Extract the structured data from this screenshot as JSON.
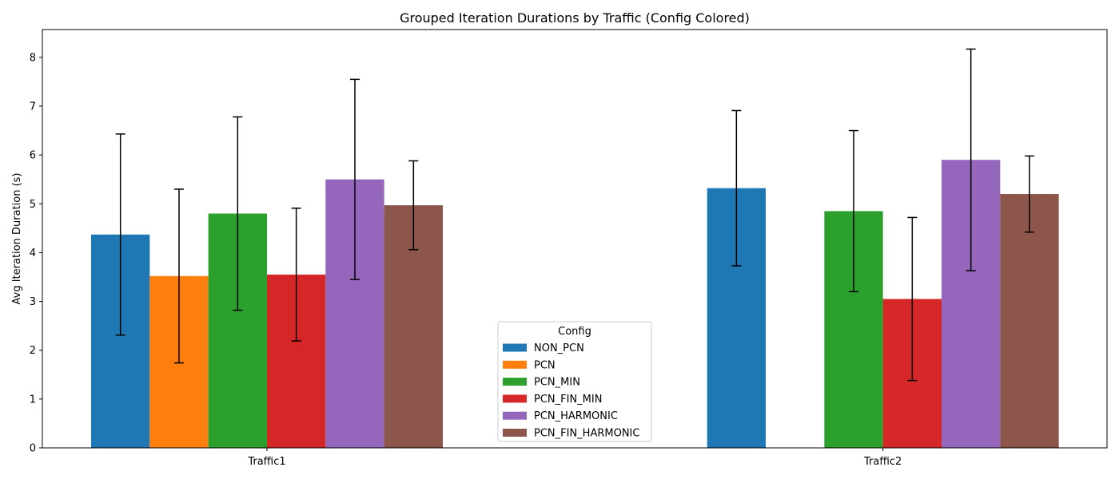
{
  "chart_data": {
    "type": "bar",
    "title": "Grouped Iteration Durations by Traffic (Config Colored)",
    "xlabel": "",
    "ylabel": "Avg Iteration Duration (s)",
    "categories": [
      "Traffic1",
      "Traffic2"
    ],
    "ylim": [
      0,
      8.57
    ],
    "yticks": [
      0,
      1,
      2,
      3,
      4,
      5,
      6,
      7,
      8
    ],
    "grid": false,
    "error_bars": true,
    "legend": {
      "title": "Config",
      "placement": "lower-center"
    },
    "series": [
      {
        "name": "NON_PCN",
        "color": "#1f77b4",
        "values": [
          4.37,
          5.32
        ],
        "errors": [
          2.06,
          1.59
        ]
      },
      {
        "name": "PCN",
        "color": "#ff7f0e",
        "values": [
          3.52,
          null
        ],
        "errors": [
          1.78,
          null
        ]
      },
      {
        "name": "PCN_MIN",
        "color": "#2ca02c",
        "values": [
          4.8,
          4.85
        ],
        "errors": [
          1.98,
          1.65
        ]
      },
      {
        "name": "PCN_FIN_MIN",
        "color": "#d62728",
        "values": [
          3.55,
          3.05
        ],
        "errors": [
          1.36,
          1.67
        ]
      },
      {
        "name": "PCN_HARMONIC",
        "color": "#9467bd",
        "values": [
          5.5,
          5.9
        ],
        "errors": [
          2.05,
          2.27
        ]
      },
      {
        "name": "PCN_FIN_HARMONIC",
        "color": "#8c564b",
        "values": [
          4.97,
          5.2
        ],
        "errors": [
          0.91,
          0.78
        ]
      }
    ]
  }
}
